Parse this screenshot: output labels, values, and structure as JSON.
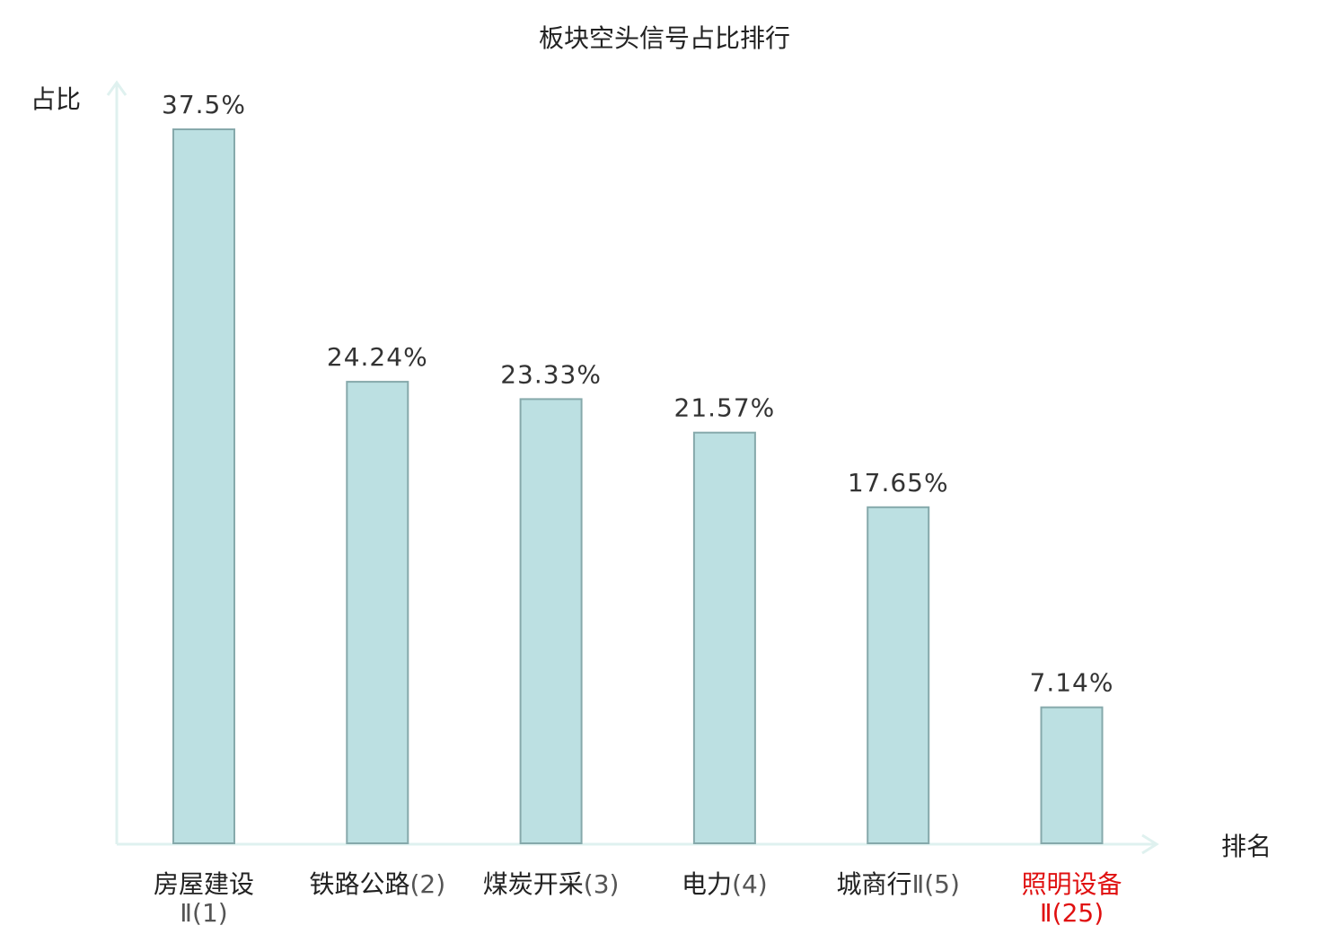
{
  "chart_data": {
    "type": "bar",
    "title": "板块空头信号占比排行",
    "xlabel": "排名",
    "ylabel": "占比",
    "categories": [
      {
        "name": "房屋建设",
        "rank": "Ⅱ(1)",
        "highlight": false
      },
      {
        "name": "铁路公路",
        "rank": "(2)",
        "highlight": false
      },
      {
        "name": "煤炭开采",
        "rank": "(3)",
        "highlight": false
      },
      {
        "name": "电力",
        "rank": "(4)",
        "highlight": false
      },
      {
        "name": "城商行",
        "rank": "Ⅱ(5)",
        "highlight": false
      },
      {
        "name": "照明设备",
        "rank": "Ⅱ(25)",
        "highlight": true
      }
    ],
    "values": [
      37.5,
      24.24,
      23.33,
      21.57,
      17.65,
      7.14
    ],
    "value_labels": [
      "37.5%",
      "24.24%",
      "23.33%",
      "21.57%",
      "17.65%",
      "7.14%"
    ],
    "ylim": [
      0,
      37.5
    ],
    "grid": false,
    "legend": "none",
    "colors": {
      "bar_fill": "#bce0e2",
      "bar_stroke": "#86a9ab",
      "axis": "#dff1ef",
      "label_text": "#222222",
      "rank_text": "#555555",
      "highlight_text": "#e01010"
    }
  }
}
